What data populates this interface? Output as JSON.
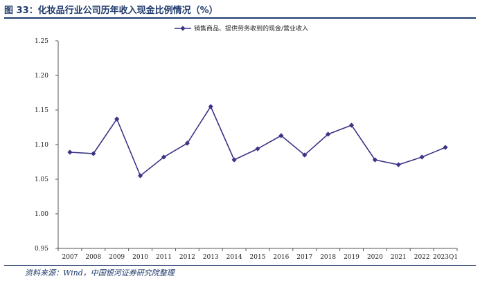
{
  "figure": {
    "title": "图 33：化妆品行业公司历年收入现金比例情况（%）",
    "source": "资料来源：Wind，中国银河证券研究院整理"
  },
  "colors": {
    "line": "#3b3486",
    "title": "#1f3a6b",
    "axis": "#555555"
  },
  "chart_data": {
    "type": "line",
    "categories": [
      "2007",
      "2008",
      "2009",
      "2010",
      "2011",
      "2012",
      "2013",
      "2014",
      "2015",
      "2016",
      "2017",
      "2018",
      "2019",
      "2020",
      "2021",
      "2022",
      "2023Q1"
    ],
    "series": [
      {
        "name": "销售商品、提供劳务收到的现金/营业收入",
        "values": [
          1.089,
          1.087,
          1.137,
          1.055,
          1.082,
          1.102,
          1.155,
          1.078,
          1.094,
          1.113,
          1.085,
          1.115,
          1.128,
          1.078,
          1.071,
          1.082,
          1.096
        ],
        "marker": "diamond"
      }
    ],
    "yticks": [
      "0.95",
      "1.00",
      "1.05",
      "1.10",
      "1.15",
      "1.20",
      "1.25"
    ],
    "ylim": [
      0.95,
      1.25
    ],
    "legend_position": "top-right",
    "grid": false
  }
}
